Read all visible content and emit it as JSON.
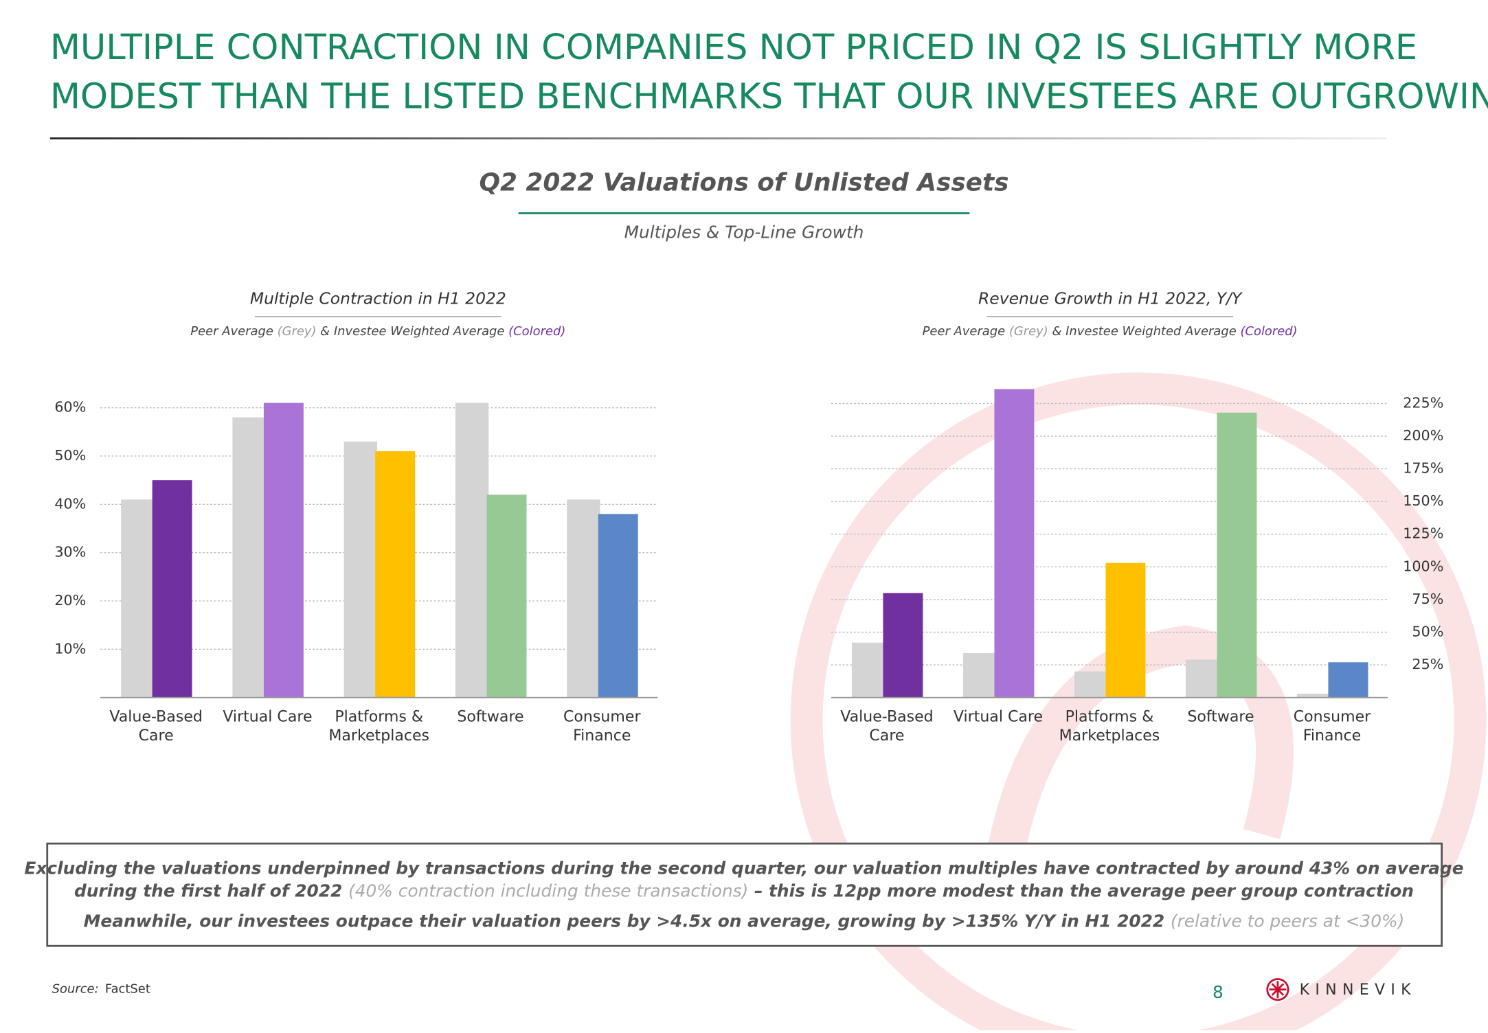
{
  "slide": {
    "title_lines": [
      "MULTIPLE CONTRACTION IN COMPANIES NOT PRICED IN Q2 IS SLIGHTLY MORE",
      "MODEST THAN THE LISTED BENCHMARKS THAT OUR INVESTEES ARE OUTGROWING"
    ],
    "heading": "Q2 2022 Valuations of Unlisted Assets",
    "subheading": "Multiples & Top-Line Growth",
    "callout": [
      [
        {
          "text": "Excluding the valuations underpinned by transactions during the second quarter, our valuation multiples have contracted by around 43% on average"
        }
      ],
      [
        {
          "text": "during the first half of 2022 "
        },
        {
          "text": "(40% contraction including these transactions)",
          "grey": true
        },
        {
          "text": " – this is 12pp more modest than the average peer group contraction"
        }
      ],
      [
        {
          "text": "Meanwhile, our investees outpace their valuation peers by >4.5x on average, growing by >135% Y/Y in H1 2022 "
        },
        {
          "text": "(relative to peers at <30%)",
          "grey": true
        }
      ]
    ],
    "source_label": "Source:",
    "source": "FactSet",
    "page_number": "8",
    "brand": "KINNEVIK"
  },
  "chart_data": [
    {
      "type": "bar",
      "title": "Multiple Contraction in H1 2022",
      "subtitle": [
        "Peer Average ",
        "(Grey)",
        " & Investee Weighted Average ",
        "(Colored)"
      ],
      "categories": [
        "Value-Based Care",
        "Virtual Care",
        "Platforms & Marketplaces",
        "Software",
        "Consumer Finance"
      ],
      "series": [
        {
          "color": "#d4d4d4",
          "values": [
            41,
            58,
            53,
            61,
            41
          ]
        },
        {
          "colors": [
            "#7030a0",
            "#a974d6",
            "#ffc000",
            "#97c994",
            "#5b87c9"
          ],
          "values": [
            45,
            61,
            51,
            42,
            38
          ]
        }
      ],
      "ylim": [
        0,
        62
      ],
      "yticks": [
        {
          "value": 10,
          "label": "10%"
        },
        {
          "value": 20,
          "label": "20%"
        },
        {
          "value": 30,
          "label": "30%"
        },
        {
          "value": 40,
          "label": "40%"
        },
        {
          "value": 50,
          "label": "50%"
        },
        {
          "value": 60,
          "label": "60%"
        }
      ],
      "axis_side": "left",
      "grid": true
    },
    {
      "type": "bar",
      "title": "Revenue Growth in H1 2022, Y/Y",
      "subtitle": [
        "Peer Average ",
        "(Grey)",
        " & Investee Weighted Average ",
        "(Colored)"
      ],
      "categories": [
        "Value-Based Care",
        "Virtual Care",
        "Platforms & Marketplaces",
        "Software",
        "Consumer Finance"
      ],
      "series": [
        {
          "color": "#d4d4d4",
          "values": [
            42,
            34,
            20,
            29,
            3
          ]
        },
        {
          "colors": [
            "#7030a0",
            "#a974d6",
            "#ffc000",
            "#97c994",
            "#5b87c9"
          ],
          "values": [
            80,
            236,
            103,
            218,
            27
          ]
        }
      ],
      "ylim": [
        0,
        240
      ],
      "yticks": [
        {
          "value": 25,
          "label": "25%"
        },
        {
          "value": 50,
          "label": "50%"
        },
        {
          "value": 75,
          "label": "75%"
        },
        {
          "value": 100,
          "label": "100%"
        },
        {
          "value": 125,
          "label": "125%"
        },
        {
          "value": 150,
          "label": "150%"
        },
        {
          "value": 175,
          "label": "175%"
        },
        {
          "value": 200,
          "label": "200%"
        },
        {
          "value": 225,
          "label": "225%"
        }
      ],
      "axis_side": "right",
      "grid": true
    }
  ]
}
